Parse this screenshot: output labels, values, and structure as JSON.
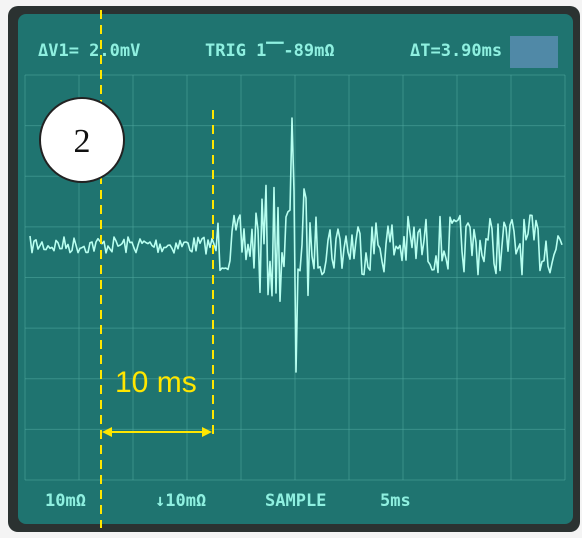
{
  "screen": {
    "top_left": "ΔV1= 2.0mV",
    "top_center": "TRIG 1⎺-89mΩ",
    "top_right": "ΔT=3.90ms",
    "bottom": [
      "10mΩ",
      "↓10mΩ",
      "SAMPLE",
      "5ms"
    ]
  },
  "annotations": {
    "panel_label": "2",
    "interval_label": "10 ms"
  }
}
